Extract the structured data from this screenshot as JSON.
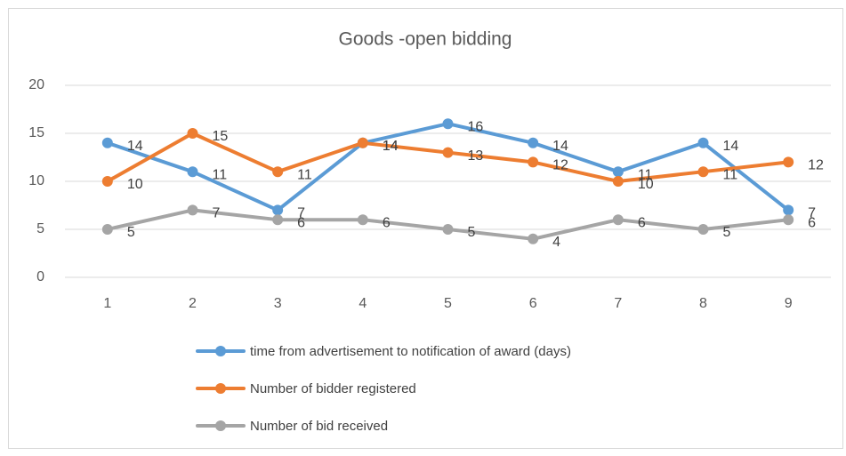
{
  "chart_data": {
    "type": "line",
    "title": "Goods -open bidding",
    "categories": [
      "1",
      "2",
      "3",
      "4",
      "5",
      "6",
      "7",
      "8",
      "9"
    ],
    "series": [
      {
        "name": "time from advertisement to notification of award (days)",
        "color": "#5b9bd5",
        "values": [
          14,
          11,
          7,
          14,
          16,
          14,
          11,
          14,
          7
        ]
      },
      {
        "name": "Number of bidder registered",
        "color": "#ed7d31",
        "values": [
          10,
          15,
          11,
          14,
          13,
          12,
          10,
          11,
          12
        ]
      },
      {
        "name": "Number of bid received",
        "color": "#a5a5a5",
        "values": [
          5,
          7,
          6,
          6,
          5,
          4,
          6,
          5,
          6
        ]
      }
    ],
    "ylim": [
      0,
      20
    ],
    "yticks": [
      0,
      5,
      10,
      15,
      20
    ],
    "grid": true,
    "data_labels": true,
    "legend": "bottom"
  }
}
